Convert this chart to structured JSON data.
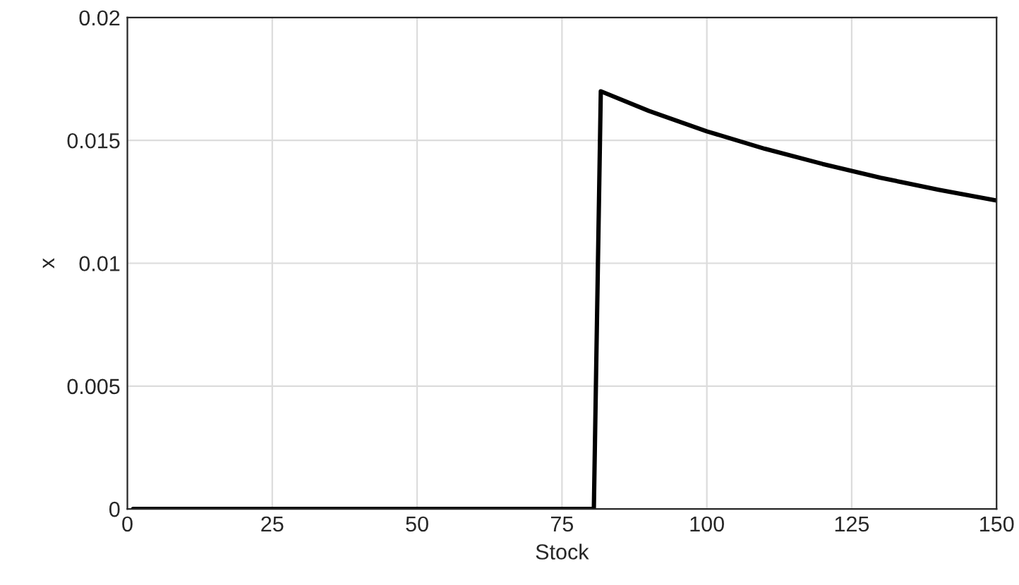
{
  "chart_data": {
    "type": "line",
    "xlabel": "Stock",
    "ylabel": "x",
    "x": [
      1,
      80.5,
      81.7,
      90,
      100,
      110,
      120,
      130,
      140,
      150
    ],
    "series": [
      {
        "color": "#000000",
        "values": [
          0,
          0,
          0.017,
          0.0162,
          0.01537,
          0.01466,
          0.01404,
          0.01348,
          0.01299,
          0.01255
        ]
      }
    ],
    "xlim": [
      0,
      150
    ],
    "xticks": [
      0,
      25,
      50,
      75,
      100,
      125,
      150
    ],
    "ylim": [
      0,
      0.02
    ],
    "yticks": [
      0,
      0.005,
      0.01,
      0.015,
      0.02
    ],
    "grid": true,
    "line_style": "solid",
    "marker": "none"
  }
}
